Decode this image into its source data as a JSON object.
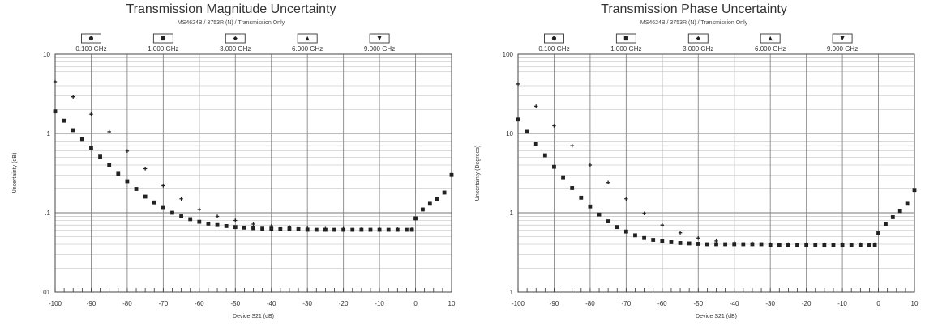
{
  "charts": [
    {
      "title": "Transmission Magnitude Uncertainty",
      "subtitle": "MS4624B / 3753R (N) / Transmission Only",
      "xlabel": "Device S21 (dB)",
      "ylabel": "Uncertainty (dB)",
      "x_ticks": [
        "-100",
        "-90",
        "-80",
        "-70",
        "-60",
        "-50",
        "-40",
        "-30",
        "-20",
        "-10",
        "0",
        "10"
      ],
      "y_ticks": [
        {
          "value": 10,
          "label": "10"
        },
        {
          "value": 1,
          "label": "1"
        },
        {
          "value": 0.1,
          "label": ".1"
        },
        {
          "value": 0.01,
          "label": ".01"
        }
      ]
    },
    {
      "title": "Transmission Phase Uncertainty",
      "subtitle": "MS4624B / 3753R (N) / Transmission Only",
      "xlabel": "Device S21 (dB)",
      "ylabel": "Uncertainty (Degrees)",
      "x_ticks": [
        "-100",
        "-90",
        "-80",
        "-70",
        "-60",
        "-50",
        "-40",
        "-30",
        "-20",
        "-10",
        "0",
        "10"
      ],
      "y_ticks": [
        {
          "value": 100,
          "label": "100"
        },
        {
          "value": 10,
          "label": "10"
        },
        {
          "value": 1,
          "label": "1"
        },
        {
          "value": 0.1,
          "label": ".1"
        }
      ]
    }
  ],
  "chart_data": [
    {
      "type": "scatter",
      "title": "Transmission Magnitude Uncertainty",
      "subtitle": "MS4624B / 3753R (N) / Transmission Only",
      "xlabel": "Device S21 (dB)",
      "ylabel": "Uncertainty (dB)",
      "xlim": [
        -100,
        10
      ],
      "ylim": [
        0.01,
        10
      ],
      "y_scale": "log",
      "grid": true,
      "legend": [
        {
          "label": "0.100 GHz",
          "marker": "circle"
        },
        {
          "label": "1.000 GHz",
          "marker": "square"
        },
        {
          "label": "3.000 GHz",
          "marker": "diamond"
        },
        {
          "label": "6.000 GHz",
          "marker": "triangle-up"
        },
        {
          "label": "9.000 GHz",
          "marker": "triangle-down"
        }
      ],
      "legend_placement": "top",
      "series": [
        {
          "marker": "cross",
          "x": [
            -100,
            -95,
            -90,
            -85,
            -80,
            -75,
            -70,
            -65,
            -60,
            -55,
            -50,
            -45,
            -40,
            -35,
            -30,
            -25,
            -20,
            -15,
            -10,
            -5,
            -1,
            0,
            2,
            4,
            6,
            8,
            10
          ],
          "y": [
            4.5,
            2.9,
            1.75,
            1.05,
            0.6,
            0.36,
            0.22,
            0.15,
            0.11,
            0.09,
            0.08,
            0.072,
            0.068,
            0.066,
            0.064,
            0.063,
            0.063,
            0.062,
            0.062,
            0.062,
            0.062,
            0.085,
            0.11,
            0.13,
            0.15,
            0.18,
            0.3
          ]
        },
        {
          "marker": "square",
          "x": [
            -100,
            -97.5,
            -95,
            -92.5,
            -90,
            -87.5,
            -85,
            -82.5,
            -80,
            -77.5,
            -75,
            -72.5,
            -70,
            -67.5,
            -65,
            -62.5,
            -60,
            -57.5,
            -55,
            -52.5,
            -50,
            -47.5,
            -45,
            -42.5,
            -40,
            -37.5,
            -35,
            -32.5,
            -30,
            -27.5,
            -25,
            -22.5,
            -20,
            -17.5,
            -15,
            -12.5,
            -10,
            -7.5,
            -5,
            -2.5,
            -1,
            0,
            2,
            4,
            6,
            8,
            10
          ],
          "y": [
            1.9,
            1.45,
            1.1,
            0.85,
            0.66,
            0.51,
            0.4,
            0.31,
            0.25,
            0.2,
            0.16,
            0.135,
            0.115,
            0.1,
            0.09,
            0.083,
            0.077,
            0.073,
            0.07,
            0.068,
            0.066,
            0.065,
            0.064,
            0.063,
            0.063,
            0.062,
            0.062,
            0.062,
            0.061,
            0.061,
            0.061,
            0.061,
            0.061,
            0.061,
            0.061,
            0.061,
            0.061,
            0.061,
            0.061,
            0.061,
            0.061,
            0.085,
            0.11,
            0.13,
            0.15,
            0.18,
            0.3
          ]
        }
      ]
    },
    {
      "type": "scatter",
      "title": "Transmission Phase Uncertainty",
      "subtitle": "MS4624B / 3753R (N) / Transmission Only",
      "xlabel": "Device S21 (dB)",
      "ylabel": "Uncertainty (Degrees)",
      "xlim": [
        -100,
        10
      ],
      "ylim": [
        0.1,
        100
      ],
      "y_scale": "log",
      "grid": true,
      "legend": [
        {
          "label": "0.100 GHz",
          "marker": "circle"
        },
        {
          "label": "1.000 GHz",
          "marker": "square"
        },
        {
          "label": "3.000 GHz",
          "marker": "diamond"
        },
        {
          "label": "6.000 GHz",
          "marker": "triangle-up"
        },
        {
          "label": "9.000 GHz",
          "marker": "triangle-down"
        }
      ],
      "legend_placement": "top",
      "series": [
        {
          "marker": "cross",
          "x": [
            -100,
            -95,
            -90,
            -85,
            -80,
            -75,
            -70,
            -65,
            -60,
            -55,
            -50,
            -45,
            -40,
            -35,
            -30,
            -25,
            -20,
            -15,
            -10,
            -5,
            -1,
            0,
            2,
            4,
            6,
            8,
            10
          ],
          "y": [
            42,
            22,
            12.5,
            7,
            4,
            2.4,
            1.5,
            0.98,
            0.7,
            0.56,
            0.48,
            0.44,
            0.42,
            0.41,
            0.4,
            0.4,
            0.4,
            0.4,
            0.4,
            0.4,
            0.4,
            0.55,
            0.72,
            0.88,
            1.05,
            1.3,
            1.9
          ]
        },
        {
          "marker": "square",
          "x": [
            -100,
            -97.5,
            -95,
            -92.5,
            -90,
            -87.5,
            -85,
            -82.5,
            -80,
            -77.5,
            -75,
            -72.5,
            -70,
            -67.5,
            -65,
            -62.5,
            -60,
            -57.5,
            -55,
            -52.5,
            -50,
            -47.5,
            -45,
            -42.5,
            -40,
            -37.5,
            -35,
            -32.5,
            -30,
            -27.5,
            -25,
            -22.5,
            -20,
            -17.5,
            -15,
            -12.5,
            -10,
            -7.5,
            -5,
            -2.5,
            -1,
            0,
            2,
            4,
            6,
            8,
            10
          ],
          "y": [
            15,
            10.5,
            7.4,
            5.3,
            3.8,
            2.8,
            2.05,
            1.55,
            1.2,
            0.95,
            0.78,
            0.66,
            0.58,
            0.52,
            0.48,
            0.455,
            0.44,
            0.425,
            0.415,
            0.41,
            0.405,
            0.4,
            0.4,
            0.4,
            0.4,
            0.4,
            0.4,
            0.4,
            0.39,
            0.39,
            0.39,
            0.39,
            0.39,
            0.39,
            0.39,
            0.39,
            0.39,
            0.39,
            0.39,
            0.39,
            0.39,
            0.55,
            0.72,
            0.88,
            1.05,
            1.3,
            1.9
          ]
        }
      ]
    }
  ]
}
